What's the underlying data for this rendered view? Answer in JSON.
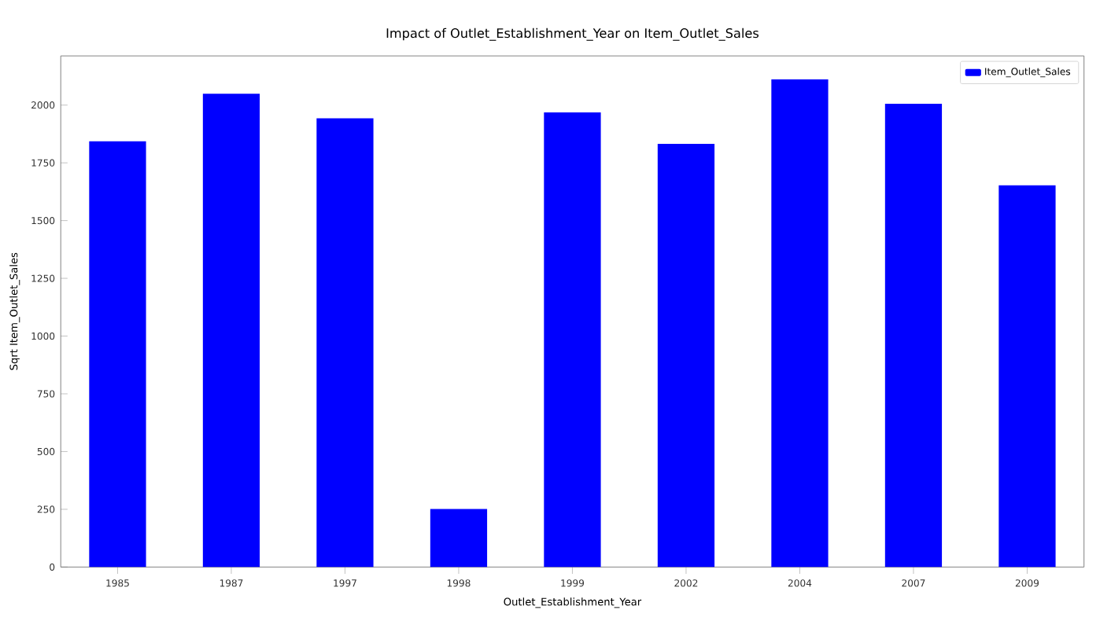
{
  "chart_data": {
    "type": "bar",
    "title": "Impact of Outlet_Establishment_Year on Item_Outlet_Sales",
    "xlabel": "Outlet_Establishment_Year",
    "ylabel": "Sqrt Item_Outlet_Sales",
    "categories": [
      "1985",
      "1987",
      "1997",
      "1998",
      "1999",
      "2002",
      "2004",
      "2007",
      "2009"
    ],
    "series": [
      {
        "name": "Item_Outlet_Sales",
        "color": "#0000ff",
        "values": [
          1843,
          2049,
          1943,
          251,
          1968,
          1832,
          2111,
          2006,
          1653
        ]
      }
    ],
    "ylim": [
      0,
      2213
    ],
    "yticks": [
      0,
      250,
      500,
      750,
      1000,
      1250,
      1500,
      1750,
      2000
    ],
    "legend": "top right"
  }
}
